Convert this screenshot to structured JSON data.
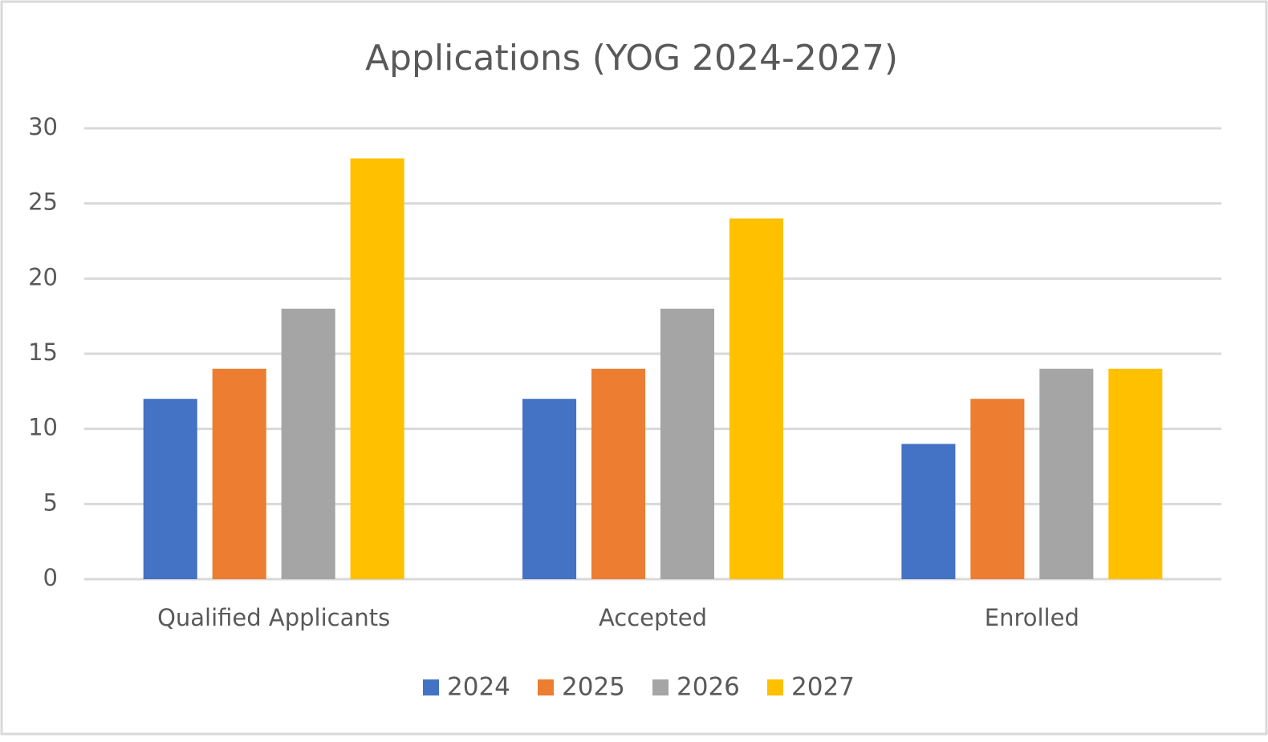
{
  "chart_data": {
    "type": "bar",
    "title": "Applications (YOG 2024-2027)",
    "categories": [
      "Qualified Applicants",
      "Accepted",
      "Enrolled"
    ],
    "series": [
      {
        "name": "2024",
        "color": "#4472c4",
        "values": [
          12,
          12,
          9
        ]
      },
      {
        "name": "2025",
        "color": "#ed7d31",
        "values": [
          14,
          14,
          12
        ]
      },
      {
        "name": "2026",
        "color": "#a5a5a5",
        "values": [
          18,
          18,
          14
        ]
      },
      {
        "name": "2027",
        "color": "#ffc000",
        "values": [
          28,
          24,
          14
        ]
      }
    ],
    "ylim": [
      0,
      30
    ],
    "yticks": [
      0,
      5,
      10,
      15,
      20,
      25,
      30
    ],
    "grid": true,
    "legend": "bottom"
  }
}
